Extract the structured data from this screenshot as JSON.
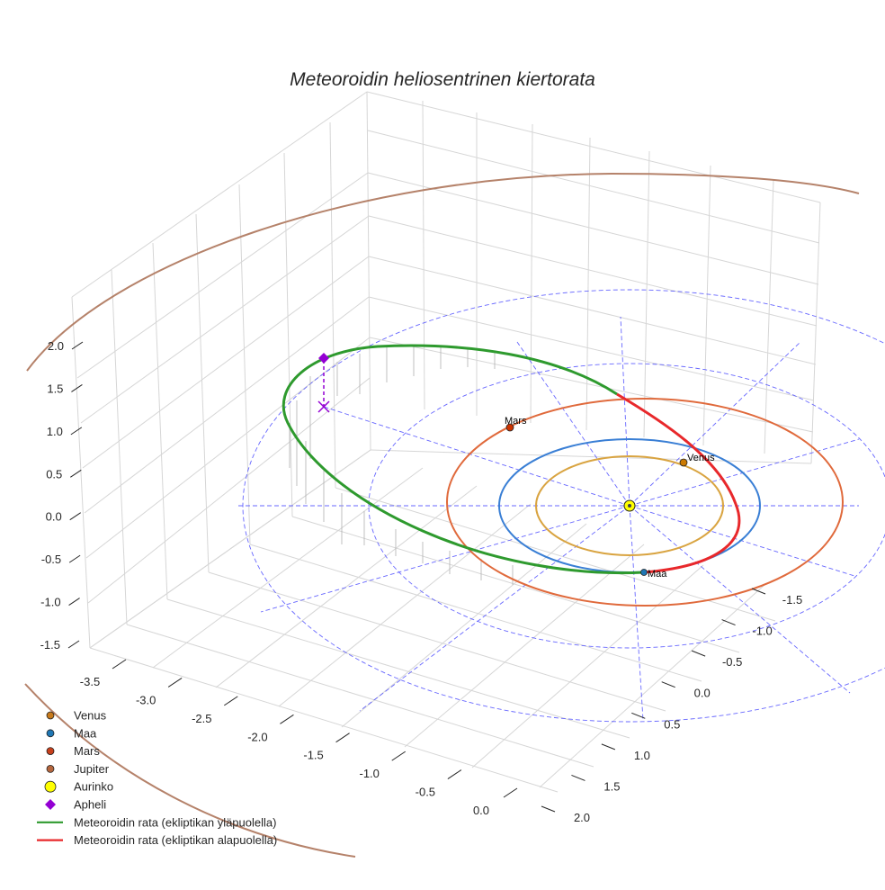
{
  "chart_data": {
    "type": "3d-line",
    "title": "Meteoroidin heliosentrinen kiertorata",
    "axes": {
      "x": {
        "ticks": [
          "-3.5",
          "-3.0",
          "-2.5",
          "-2.0",
          "-1.5",
          "-1.0",
          "-0.5",
          "0.0"
        ],
        "range": [
          -3.5,
          0.0
        ]
      },
      "y": {
        "ticks": [
          "-1.5",
          "-1.0",
          "-0.5",
          "0.0",
          "0.5",
          "1.0",
          "1.5",
          "2.0"
        ],
        "range": [
          -1.5,
          2.0
        ]
      },
      "z": {
        "ticks": [
          "-1.5",
          "-1.0",
          "-0.5",
          "0.0",
          "0.5",
          "1.0",
          "1.5",
          "2.0"
        ],
        "range": [
          -1.5,
          2.0
        ]
      }
    },
    "bodies": [
      {
        "name": "Venus",
        "label": "Venus",
        "color": "#cc7a00",
        "orbit_color": "#d9a441"
      },
      {
        "name": "Maa",
        "label": "Maa",
        "color": "#1f77b4",
        "orbit_color": "#3a7fd5"
      },
      {
        "name": "Mars",
        "label": "Mars",
        "color": "#cc3300",
        "orbit_color": "#e06a3c"
      },
      {
        "name": "Jupiter",
        "label": "",
        "color": "#b5663e",
        "orbit_color": "#b5826a"
      },
      {
        "name": "Aurinko",
        "label": "",
        "color": "#ffff00",
        "orbit_color": ""
      }
    ],
    "markers": [
      {
        "name": "Apheli",
        "color": "#9400d3",
        "shape": "diamond"
      }
    ],
    "series": [
      {
        "name": "Meteoroidin rata (ekliptikan yläpuolella)",
        "color": "#2e9a2e"
      },
      {
        "name": "Meteoroidin rata (ekliptikan alapuolella)",
        "color": "#e8282b"
      }
    ],
    "legend": {
      "position": "bottom-left",
      "items": [
        {
          "label": "Venus",
          "kind": "dot",
          "color": "#c87a1c"
        },
        {
          "label": "Maa",
          "kind": "dot",
          "color": "#1f77b4"
        },
        {
          "label": "Mars",
          "kind": "dot",
          "color": "#c8401c"
        },
        {
          "label": "Jupiter",
          "kind": "dot",
          "color": "#b5663e"
        },
        {
          "label": "Aurinko",
          "kind": "bigdot",
          "color": "#ffff00"
        },
        {
          "label": "Apheli",
          "kind": "diamond",
          "color": "#9400d3"
        },
        {
          "label": "Meteoroidin rata (ekliptikan yläpuolella)",
          "kind": "line",
          "color": "#2e9a2e"
        },
        {
          "label": "Meteoroidin rata (ekliptikan alapuolella)",
          "kind": "line",
          "color": "#e8282b"
        }
      ]
    },
    "grid": true,
    "ecliptic_reference_lines": "dashed blue radial lines and rings"
  }
}
